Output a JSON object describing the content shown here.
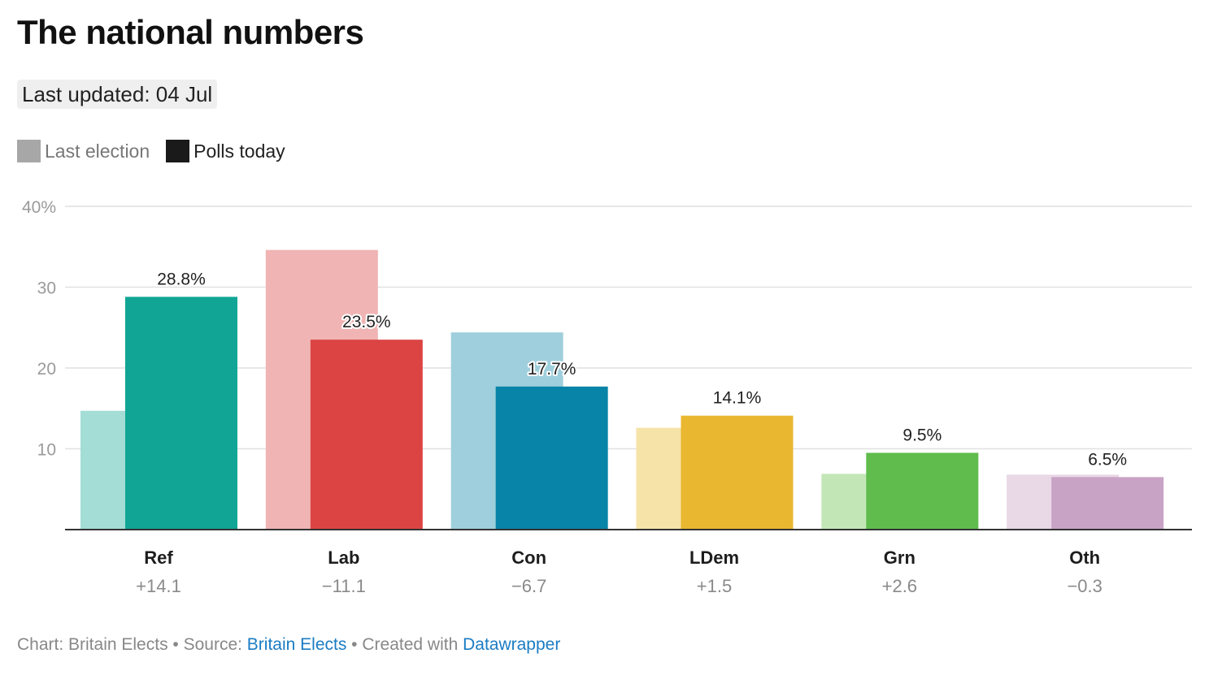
{
  "title": "The national numbers",
  "updated": "Last updated: 04 Jul",
  "legend": {
    "last": {
      "label": "Last election",
      "color": "#a7a7a7"
    },
    "today": {
      "label": "Polls today",
      "color": "#1a1a1a"
    }
  },
  "footer": {
    "chart_prefix": "Chart: Britain Elects • Source: ",
    "source_link": "Britain Elects",
    "created_prefix": " • Created with ",
    "created_link": "Datawrapper"
  },
  "chart_data": {
    "type": "bar",
    "title": "The national numbers",
    "ylim": [
      0,
      40
    ],
    "yticks": [
      10,
      20,
      30,
      40
    ],
    "ytick_labels": [
      "10",
      "20",
      "30",
      "40%"
    ],
    "grid": true,
    "categories": [
      "Ref",
      "Lab",
      "Con",
      "LDem",
      "Grn",
      "Oth"
    ],
    "changes": [
      "+14.1",
      "−11.1",
      "−6.7",
      "+1.5",
      "+2.6",
      "−0.3"
    ],
    "series": [
      {
        "name": "Last election",
        "values": [
          14.7,
          34.6,
          24.4,
          12.6,
          6.9,
          6.8
        ],
        "colors": [
          "#a3ddd6",
          "#f0b4b4",
          "#9fcfdc",
          "#f6e3a7",
          "#c3e6b7",
          "#e9d8e6"
        ]
      },
      {
        "name": "Polls today",
        "values": [
          28.8,
          23.5,
          17.7,
          14.1,
          9.5,
          6.5
        ],
        "value_labels": [
          "28.8%",
          "23.5%",
          "17.7%",
          "14.1%",
          "9.5%",
          "6.5%"
        ],
        "colors": [
          "#10a595",
          "#dc4444",
          "#0784a8",
          "#e9b730",
          "#5fbc4d",
          "#c9a3c6"
        ]
      }
    ]
  }
}
